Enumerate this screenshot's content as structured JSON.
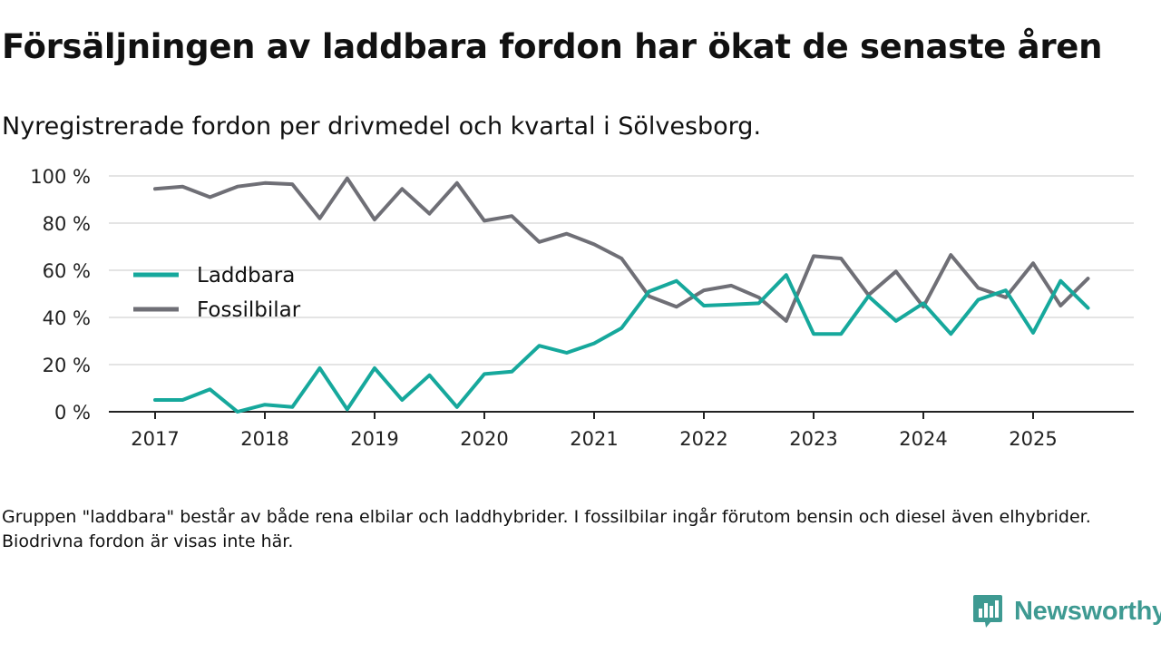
{
  "title": "Försäljningen av laddbara fordon har ökat de senaste åren",
  "subtitle": "Nyregistrerade fordon per drivmedel och kvartal i Sölvesborg.",
  "footnote": "Gruppen \"laddbara\" består av både rena elbilar och laddhybrider. I fossilbilar ingår förutom bensin och diesel även elhybrider. Biodrivna fordon är visas inte här.",
  "brand": {
    "name": "Newsworthy",
    "color": "#3e9a92",
    "icon": "bar-chart-speech-bubble-icon"
  },
  "chart_data": {
    "type": "line",
    "title": "Försäljningen av laddbara fordon har ökat de senaste åren",
    "subtitle": "Nyregistrerade fordon per drivmedel och kvartal i Sölvesborg.",
    "xlabel": "",
    "ylabel": "",
    "x_unit": "year (quarterly)",
    "xlim": [
      2016.6,
      2026.0
    ],
    "ylim": [
      0,
      100
    ],
    "x_ticks": [
      2017,
      2018,
      2019,
      2020,
      2021,
      2022,
      2023,
      2024,
      2025
    ],
    "x_tick_labels": [
      "2017",
      "2018",
      "2019",
      "2020",
      "2021",
      "2022",
      "2023",
      "2024",
      "2025"
    ],
    "y_ticks": [
      0,
      20,
      40,
      60,
      80,
      100
    ],
    "y_tick_labels": [
      "0 %",
      "20 %",
      "40 %",
      "60 %",
      "80 %",
      "100 %"
    ],
    "grid": "horizontal",
    "legend_position": "left",
    "x": [
      2017.0,
      2017.25,
      2017.5,
      2017.75,
      2018.0,
      2018.25,
      2018.5,
      2018.75,
      2019.0,
      2019.25,
      2019.5,
      2019.75,
      2020.0,
      2020.25,
      2020.5,
      2020.75,
      2021.0,
      2021.25,
      2021.5,
      2021.75,
      2022.0,
      2022.25,
      2022.5,
      2022.75,
      2023.0,
      2023.25,
      2023.5,
      2023.75,
      2024.0,
      2024.25,
      2024.5,
      2024.75,
      2025.0,
      2025.25,
      2025.5
    ],
    "series": [
      {
        "name": "Laddbara",
        "color": "#16a89c",
        "values": [
          5,
          5,
          9.5,
          0,
          3,
          2,
          18.5,
          1,
          18.5,
          5,
          15.5,
          2,
          16,
          17,
          28,
          25,
          29,
          35.5,
          51,
          55.5,
          45,
          45.5,
          46,
          58,
          33,
          33,
          49,
          38.5,
          46,
          33,
          47.5,
          51.5,
          33.5,
          55.5,
          44
        ]
      },
      {
        "name": "Fossilbilar",
        "color": "#6f6f76",
        "values": [
          94.5,
          95.5,
          91,
          95.5,
          97,
          96.5,
          82,
          99,
          81.5,
          94.5,
          84,
          97,
          81,
          83,
          72,
          75.5,
          71,
          65,
          49,
          44.5,
          51.5,
          53.5,
          48.5,
          38.5,
          66,
          65,
          49.5,
          59.5,
          44.5,
          66.5,
          52.5,
          48.5,
          63,
          45,
          56.5
        ]
      }
    ]
  }
}
